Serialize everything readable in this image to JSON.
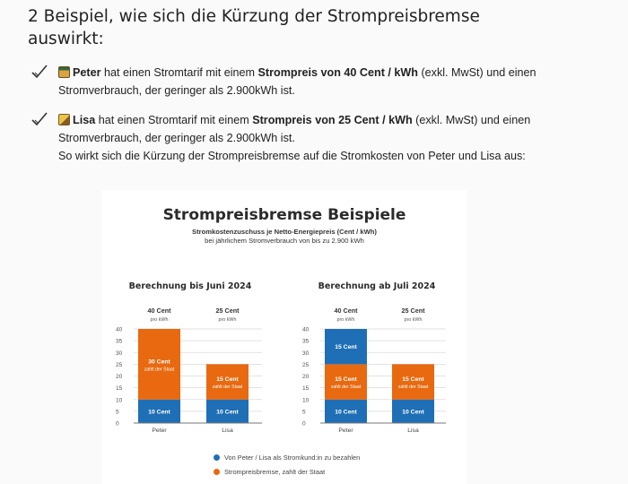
{
  "heading": "2 Beispiel, wie sich die Kürzung der Strompreisbremse auswirkt:",
  "items": [
    {
      "name": "Peter",
      "parts": [
        "hat einen Stromtarif mit einem",
        "Strompreis von 40 Cent / kWh",
        "(exkl. MwSt) und einen Stromverbrauch, der geringer als 2.900kWh ist."
      ]
    },
    {
      "name": "Lisa",
      "parts": [
        "hat einen Stromtarif mit einem",
        "Strompreis von 25 Cent / kWh",
        "(exkl. MwSt) und einen Stromverbrauch, der geringer als 2.900kWh ist."
      ],
      "followup": "So wirkt sich die Kürzung der Strompreisbremse auf die Stromkosten von Peter und Lisa aus:"
    }
  ],
  "card": {
    "title": "Strompreisbremse Beispiele",
    "subtitle_bold": "Stromkostenzuschuss je Netto-Energiepreis (Cent / kWh)",
    "subtitle_normal": "bei jährlichem Stromverbrauch von bis zu 2.900 kWh"
  },
  "colors": {
    "blue": "#1f6fb6",
    "orange": "#e8690f",
    "grid": "#d9d9d9",
    "axis": "#777777"
  },
  "chart_data": [
    {
      "type": "bar",
      "stacked": true,
      "title": "Berechnung bis Juni 2024",
      "categories": [
        "Peter",
        "Lisa"
      ],
      "category_headers": [
        {
          "price": "40 Cent",
          "unit": "pro kWh"
        },
        {
          "price": "25 Cent",
          "unit": "pro kWh"
        }
      ],
      "ylim": [
        0,
        40
      ],
      "yticks": [
        0,
        5,
        10,
        15,
        20,
        25,
        30,
        35,
        40
      ],
      "series": [
        {
          "name": "Von Peter / Lisa als Stromkund:in zu bezahlen",
          "color": "blue",
          "values": [
            10,
            10
          ],
          "labels": [
            {
              "main": "10 Cent",
              "sub": ""
            },
            {
              "main": "10 Cent",
              "sub": ""
            }
          ]
        },
        {
          "name": "Strompreisbremse, zahlt der Staat",
          "color": "orange",
          "values": [
            30,
            15
          ],
          "labels": [
            {
              "main": "30 Cent",
              "sub": "zahlt der Staat"
            },
            {
              "main": "15 Cent",
              "sub": "zahlt der Staat"
            }
          ]
        }
      ]
    },
    {
      "type": "bar",
      "stacked": true,
      "title": "Berechnung ab Juli 2024",
      "categories": [
        "Peter",
        "Lisa"
      ],
      "category_headers": [
        {
          "price": "40 Cent",
          "unit": "pro kWh"
        },
        {
          "price": "25 Cent",
          "unit": "pro kWh"
        }
      ],
      "ylim": [
        0,
        40
      ],
      "yticks": [
        0,
        5,
        10,
        15,
        20,
        25,
        30,
        35,
        40
      ],
      "stack": [
        [
          {
            "value": 10,
            "color": "blue",
            "main": "10 Cent",
            "sub": ""
          },
          {
            "value": 15,
            "color": "orange",
            "main": "15 Cent",
            "sub": "zahlt der Staat"
          },
          {
            "value": 15,
            "color": "blue",
            "main": "15 Cent",
            "sub": ""
          }
        ],
        [
          {
            "value": 10,
            "color": "blue",
            "main": "10 Cent",
            "sub": ""
          },
          {
            "value": 15,
            "color": "orange",
            "main": "15 Cent",
            "sub": "zahlt der Staat"
          }
        ]
      ]
    }
  ],
  "legend": [
    {
      "label": "Von Peter / Lisa als Stromkund:in zu bezahlen",
      "color": "blue"
    },
    {
      "label": "Strompreisbremse, zahlt der Staat",
      "color": "orange"
    }
  ]
}
